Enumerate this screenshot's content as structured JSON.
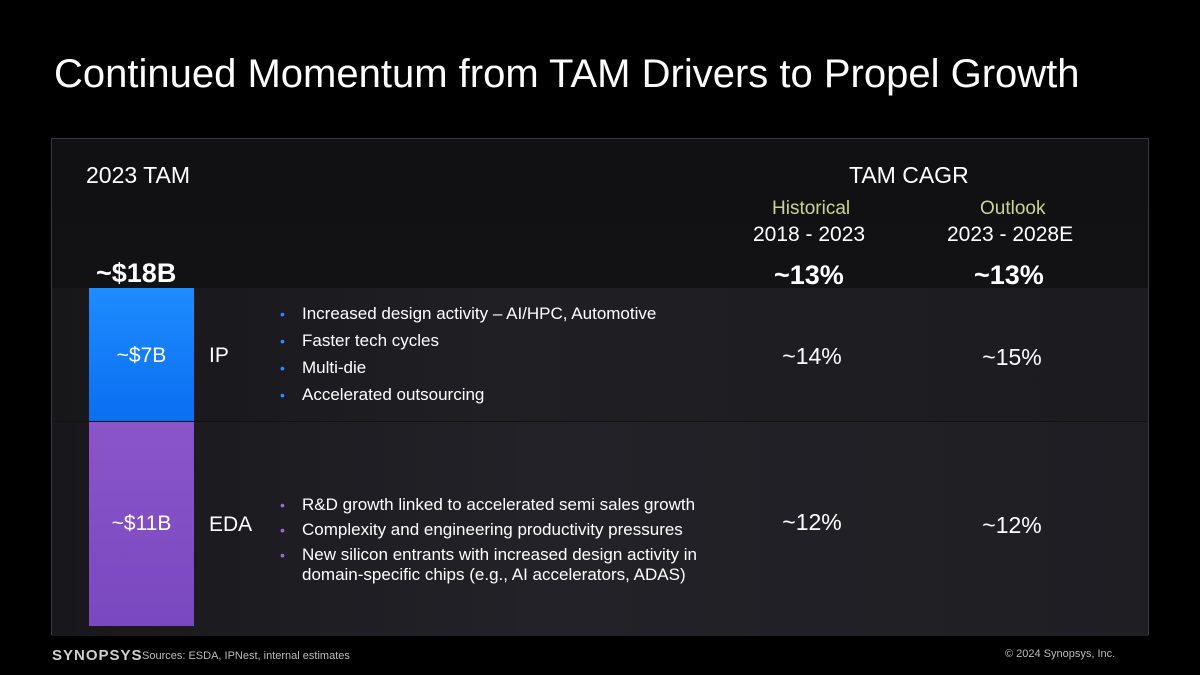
{
  "title": "Continued Momentum from TAM Drivers to Propel Growth",
  "headers": {
    "tam_2023": "2023 TAM",
    "tam_cagr": "TAM CAGR",
    "historical_label": "Historical",
    "historical_period": "2018 - 2023",
    "outlook_label": "Outlook",
    "outlook_period": "2023 - 2028E"
  },
  "totals": {
    "tam": "~$18B",
    "historical_cagr": "~13%",
    "outlook_cagr": "~13%"
  },
  "segments": [
    {
      "value": "~$7B",
      "name": "IP",
      "historical": "~14%",
      "outlook": "~15%",
      "color": "#0a6ef0",
      "bullets": [
        "Increased design activity – AI/HPC, Automotive",
        "Faster tech cycles",
        "Multi-die",
        "Accelerated outsourcing"
      ]
    },
    {
      "value": "~$11B",
      "name": "EDA",
      "historical": "~12%",
      "outlook": "~12%",
      "color": "#7a48c0",
      "bullets": [
        "R&D growth linked to accelerated semi sales growth",
        "Complexity and engineering productivity pressures",
        "New silicon entrants with increased design activity in domain-specific chips (e.g., AI accelerators, ADAS)"
      ]
    }
  ],
  "footer": {
    "logo": "SYNOPSYS",
    "sources": "Sources: ESDA, IPNest, internal estimates",
    "copyright": "© 2024 Synopsys, Inc."
  },
  "icons": {
    "bullet": "•"
  }
}
